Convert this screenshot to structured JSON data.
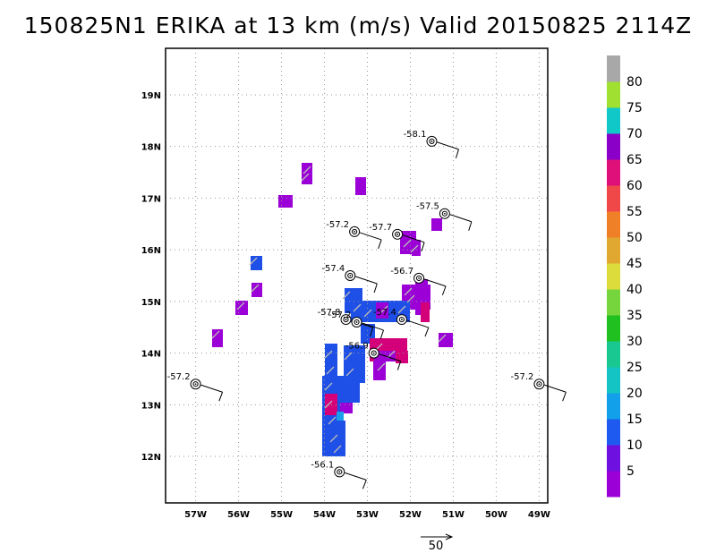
{
  "title": "150825N1 ERIKA at 13 km (m/s) Valid 20150825 2114Z",
  "map": {
    "lon_range": [
      -57.7,
      -48.8
    ],
    "lat_range": [
      11.1,
      19.9
    ],
    "lon_ticks": [
      {
        "v": -57,
        "label": "57W"
      },
      {
        "v": -56,
        "label": "56W"
      },
      {
        "v": -55,
        "label": "55W"
      },
      {
        "v": -54,
        "label": "54W"
      },
      {
        "v": -53,
        "label": "53W"
      },
      {
        "v": -52,
        "label": "52W"
      },
      {
        "v": -51,
        "label": "51W"
      },
      {
        "v": -50,
        "label": "50W"
      },
      {
        "v": -49,
        "label": "49W"
      }
    ],
    "lat_ticks": [
      {
        "v": 12,
        "label": "12N"
      },
      {
        "v": 13,
        "label": "13N"
      },
      {
        "v": 14,
        "label": "14N"
      },
      {
        "v": 15,
        "label": "15N"
      },
      {
        "v": 16,
        "label": "16N"
      },
      {
        "v": 17,
        "label": "17N"
      },
      {
        "v": 18,
        "label": "18N"
      },
      {
        "v": 19,
        "label": "19N"
      }
    ],
    "grid": "dotted"
  },
  "colorbar": {
    "labels": [
      "5",
      "10",
      "15",
      "20",
      "25",
      "30",
      "35",
      "40",
      "45",
      "50",
      "55",
      "60",
      "65",
      "70",
      "75",
      "80"
    ],
    "colors": [
      "#9b00d6",
      "#6d10e0",
      "#1e5af0",
      "#12a0ea",
      "#14c4c4",
      "#18c890",
      "#20c020",
      "#76d43c",
      "#dcdc3c",
      "#e0a830",
      "#f08028",
      "#f04848",
      "#e0107a",
      "#8a00c8",
      "#10c8c8",
      "#a0e030",
      "#a8a8a8"
    ]
  },
  "reference_vector": {
    "label": "50"
  },
  "observations": [
    {
      "lon": -57.0,
      "lat": 13.4,
      "temp": "-57.2"
    },
    {
      "lon": -51.5,
      "lat": 18.1,
      "temp": "-58.1"
    },
    {
      "lon": -51.2,
      "lat": 16.7,
      "temp": "-57.5"
    },
    {
      "lon": -53.3,
      "lat": 16.35,
      "temp": "-57.2"
    },
    {
      "lon": -52.3,
      "lat": 16.3,
      "temp": "-57.7"
    },
    {
      "lon": -53.4,
      "lat": 15.5,
      "temp": "-57.4"
    },
    {
      "lon": -51.8,
      "lat": 15.45,
      "temp": "-56.7"
    },
    {
      "lon": -53.5,
      "lat": 14.65,
      "temp": "-57.8"
    },
    {
      "lon": -53.25,
      "lat": 14.6,
      "temp": "-57.2"
    },
    {
      "lon": -52.2,
      "lat": 14.65,
      "temp": "-57.4"
    },
    {
      "lon": -52.85,
      "lat": 14.0,
      "temp": "-56.9"
    },
    {
      "lon": -53.65,
      "lat": 11.7,
      "temp": "-56.1"
    },
    {
      "lon": -49.0,
      "lat": 13.4,
      "temp": "-57.2"
    }
  ]
}
